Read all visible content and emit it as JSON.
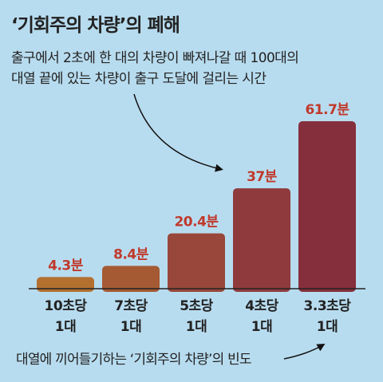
{
  "title": "‘기회주의 차량’의 폐해",
  "subtitle_lines": [
    "출구에서 2초에 한 대의 차량이 빠져나갈 때 100대의",
    "대열 끝에 있는 차량이 출구 도달에 걸리는 시간"
  ],
  "footnote": "대열에 끼어들기하는 ‘기회주의 차량’의 빈도",
  "colors": {
    "background": "#b8dcef",
    "bar_gradient": [
      "#b3702f",
      "#a55a33",
      "#98473a",
      "#8f3b3d",
      "#862f3c"
    ],
    "value_label": "#c0392b",
    "baseline": "#222222"
  },
  "chart_data": {
    "type": "bar",
    "title": "‘기회주의 차량’의 폐해",
    "categories": [
      [
        "10초당",
        "1대"
      ],
      [
        "7초당",
        "1대"
      ],
      [
        "5초당",
        "1대"
      ],
      [
        "4초당",
        "1대"
      ],
      [
        "3.3초당",
        "1대"
      ]
    ],
    "values": [
      4.3,
      8.4,
      20.4,
      37,
      61.7
    ],
    "value_labels": [
      "4.3분",
      "8.4분",
      "20.4분",
      "37분",
      "61.7분"
    ],
    "unit": "분",
    "ylim": [
      0,
      61.7
    ],
    "grid": false,
    "legend": "none"
  }
}
